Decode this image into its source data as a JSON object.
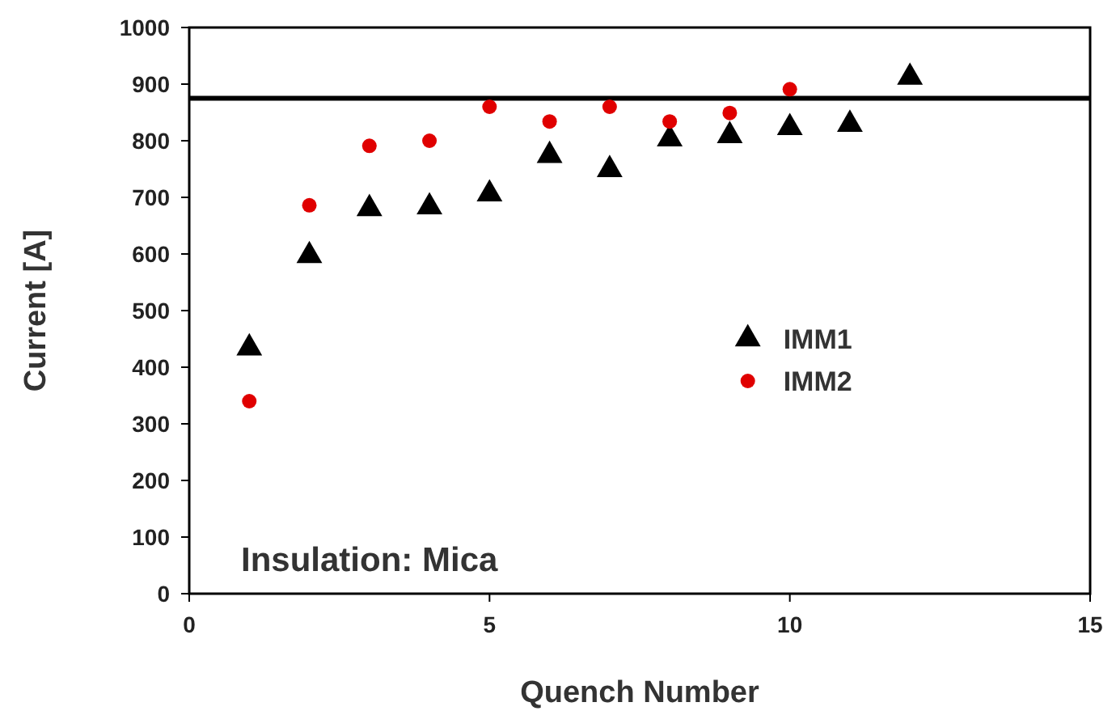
{
  "chart_data": {
    "type": "scatter",
    "xlabel": "Quench Number",
    "ylabel": "Current [A]",
    "xlim": [
      0,
      15
    ],
    "xticks": [
      0,
      5,
      10,
      15
    ],
    "ylim": [
      0,
      1000
    ],
    "yticks": [
      0,
      100,
      200,
      300,
      400,
      500,
      600,
      700,
      800,
      900,
      1000
    ],
    "grid": false,
    "legend": "right",
    "series": [
      {
        "name": "IMM1",
        "color": "#000000",
        "marker": "triangle",
        "x": [
          1,
          2,
          3,
          4,
          5,
          6,
          7,
          8,
          9,
          10,
          11,
          12
        ],
        "values": [
          434,
          597,
          680,
          683,
          706,
          774,
          749,
          803,
          809,
          823,
          829,
          912
        ]
      },
      {
        "name": "IMM2",
        "color": "#e00000",
        "marker": "circle",
        "x": [
          1,
          2,
          3,
          4,
          5,
          6,
          7,
          8,
          9,
          10
        ],
        "values": [
          340,
          686,
          791,
          800,
          860,
          834,
          860,
          834,
          849,
          891
        ]
      }
    ],
    "ref_lines": [
      {
        "axis": "y",
        "value": 875,
        "color": "#000000"
      }
    ],
    "annotations": [
      "Insulation: Mica"
    ]
  }
}
